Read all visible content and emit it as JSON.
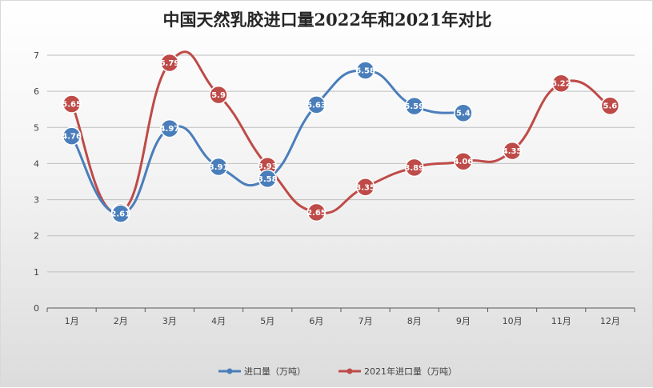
{
  "chart_data": {
    "type": "line",
    "title": "中国天然乳胶进口量2022年和2021年对比",
    "categories": [
      "1月",
      "2月",
      "3月",
      "4月",
      "5月",
      "6月",
      "7月",
      "8月",
      "9月",
      "10月",
      "11月",
      "12月"
    ],
    "ylim": [
      0,
      7
    ],
    "yticks": [
      0,
      1,
      2,
      3,
      4,
      5,
      6,
      7
    ],
    "grid": true,
    "smooth": true,
    "legend": "bottom",
    "series": [
      {
        "name": "进口量（万吨）",
        "color": "#4a7ebb",
        "values": [
          4.76,
          2.61,
          4.97,
          3.91,
          3.58,
          5.63,
          6.58,
          5.59,
          5.4,
          null,
          null,
          null
        ],
        "labels": [
          "4.76",
          "2.61",
          "4.97",
          "3.91",
          "3.58",
          "5.63",
          "6.58",
          "5.59",
          "5.4",
          null,
          null,
          null
        ]
      },
      {
        "name": "2021年进口量（万吨）",
        "color": "#be4b48",
        "values": [
          5.65,
          2.65,
          6.79,
          5.9,
          3.93,
          2.65,
          3.35,
          3.89,
          4.06,
          4.35,
          6.22,
          5.6
        ],
        "labels": [
          "5.65",
          "2.65",
          "6.79",
          "5.9",
          "3.93",
          "2.65",
          "3.35",
          "3.89",
          "4.06",
          "4.35",
          "6.22",
          "5.6"
        ]
      }
    ]
  }
}
